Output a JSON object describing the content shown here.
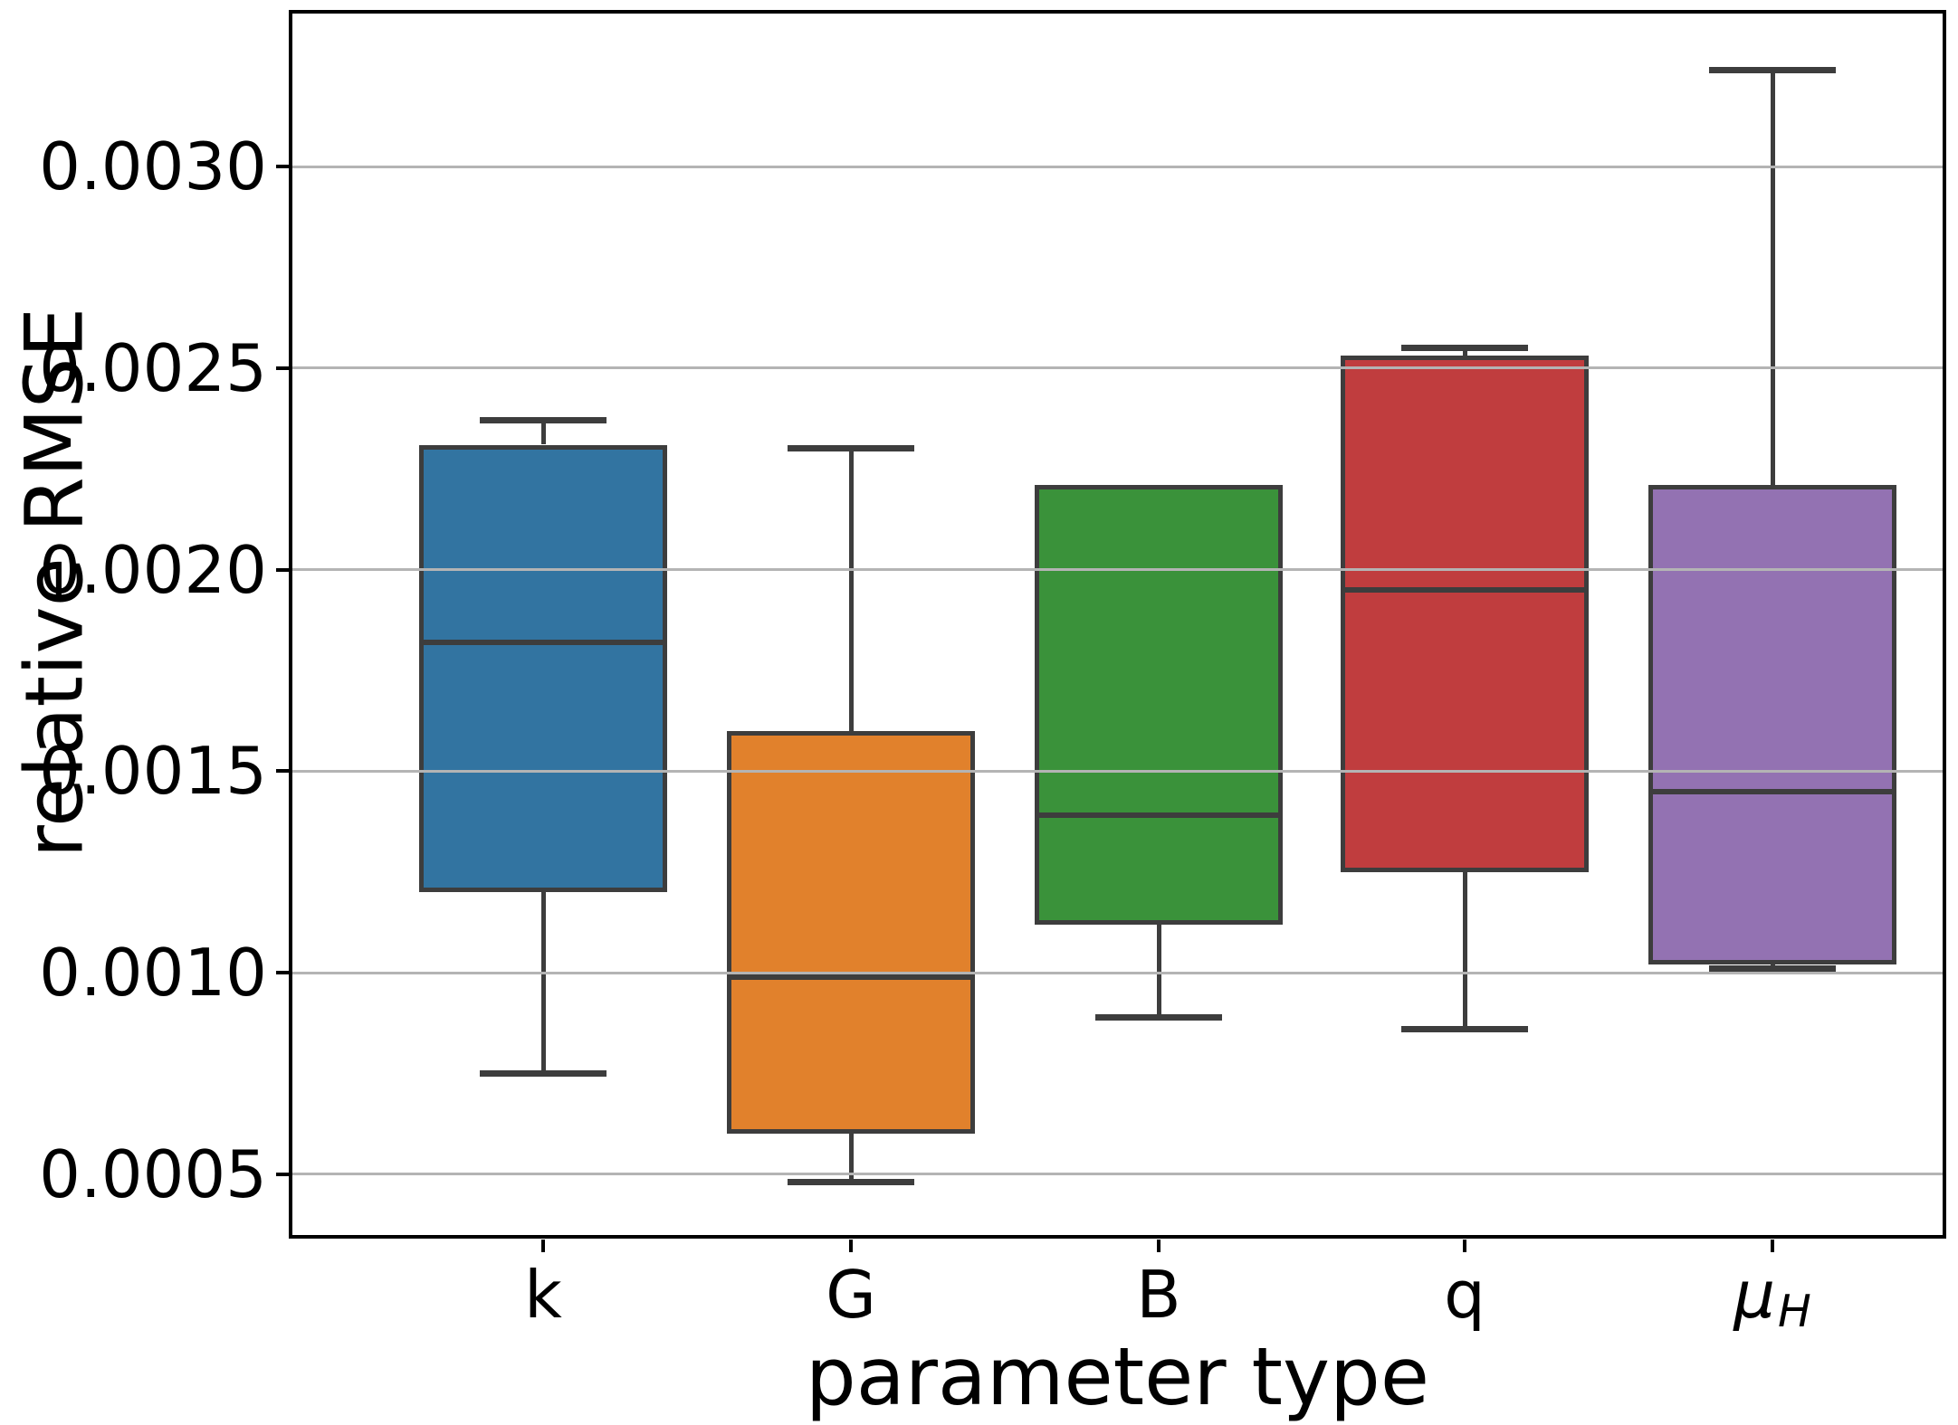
{
  "chart_data": {
    "type": "box",
    "title": "",
    "xlabel": "parameter type",
    "ylabel": "relative RMSE",
    "categories": [
      "k",
      "G",
      "B",
      "q",
      "μH"
    ],
    "x_tick_labels": [
      {
        "text": "k",
        "italic": false
      },
      {
        "text": "G",
        "italic": false
      },
      {
        "text": "B",
        "italic": false
      },
      {
        "text": "q",
        "italic": false
      },
      {
        "text": "μ",
        "sub": "H",
        "italic": true
      }
    ],
    "y_ticks": [
      {
        "value": 0.0005,
        "label": "0.0005"
      },
      {
        "value": 0.001,
        "label": "0.0010"
      },
      {
        "value": 0.0015,
        "label": "0.0015"
      },
      {
        "value": 0.002,
        "label": "0.0020"
      },
      {
        "value": 0.0025,
        "label": "0.0025"
      },
      {
        "value": 0.003,
        "label": "0.0030"
      }
    ],
    "ylim": [
      0.000345,
      0.003384
    ],
    "grid": true,
    "grid_over_boxes": true,
    "legend": "none",
    "series": [
      {
        "category": "k",
        "color": "#3274A1",
        "whislo": 0.00075,
        "q1": 0.0012,
        "med": 0.00182,
        "q3": 0.00231,
        "whishi": 0.00237,
        "cap_hi": true,
        "cap_lo": true
      },
      {
        "category": "G",
        "color": "#E1812C",
        "whislo": 0.00048,
        "q1": 0.0006,
        "med": 0.00099,
        "q3": 0.0016,
        "whishi": 0.0023,
        "cap_hi": true,
        "cap_lo": true
      },
      {
        "category": "B",
        "color": "#3A923A",
        "whislo": 0.00089,
        "q1": 0.00112,
        "med": 0.00139,
        "q3": 0.00221,
        "whishi": 0.00221,
        "cap_hi": false,
        "cap_lo": true
      },
      {
        "category": "q",
        "color": "#C03D3E",
        "whislo": 0.00086,
        "q1": 0.00125,
        "med": 0.00195,
        "q3": 0.00253,
        "whishi": 0.00255,
        "cap_hi": true,
        "cap_lo": true
      },
      {
        "category": "μH",
        "color": "#9372B2",
        "whislo": 0.00101,
        "q1": 0.00102,
        "med": 0.00145,
        "q3": 0.00221,
        "whishi": 0.00324,
        "cap_hi": true,
        "cap_lo": true
      }
    ],
    "colors": {
      "box_edge": "#3D3D3D",
      "grid": "#B4B4B4",
      "spine": "#000000",
      "text": "#000000",
      "background": "#FFFFFF"
    }
  }
}
